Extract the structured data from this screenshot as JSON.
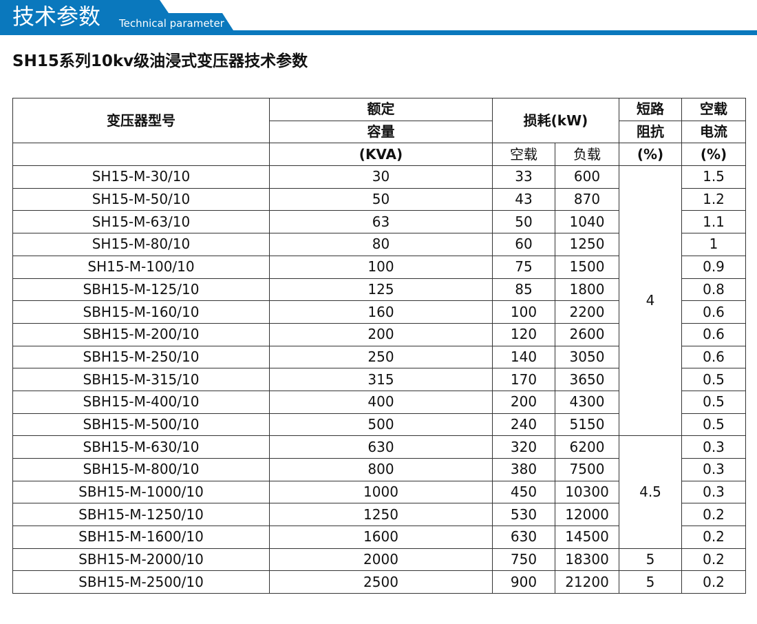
{
  "banner": {
    "title": "技术参数",
    "subtitle": "Technical parameter",
    "color": "#0a78bd"
  },
  "doc_title": "SH15系列10kv级油浸式变压器技术参数",
  "table": {
    "headers": {
      "model": "变压器型号",
      "capacity": [
        "额定",
        "容量",
        "(KVA)"
      ],
      "loss": "损耗(kW)",
      "no_load": "空载",
      "load": "负载",
      "impedance": [
        "短路",
        "阻抗",
        "(%)"
      ],
      "current": [
        "空载",
        "电流",
        "(%)"
      ]
    },
    "rows": [
      {
        "model": "SH15-M-30/10",
        "kva": "30",
        "nl": "33",
        "ld": "600",
        "cur": "1.5"
      },
      {
        "model": "SH15-M-50/10",
        "kva": "50",
        "nl": "43",
        "ld": "870",
        "cur": "1.2"
      },
      {
        "model": "SH15-M-63/10",
        "kva": "63",
        "nl": "50",
        "ld": "1040",
        "cur": "1.1"
      },
      {
        "model": "SH15-M-80/10",
        "kva": "80",
        "nl": "60",
        "ld": "1250",
        "cur": "1"
      },
      {
        "model": "SH15-M-100/10",
        "kva": "100",
        "nl": "75",
        "ld": "1500",
        "cur": "0.9"
      },
      {
        "model": "SBH15-M-125/10",
        "kva": "125",
        "nl": "85",
        "ld": "1800",
        "cur": "0.8"
      },
      {
        "model": "SBH15-M-160/10",
        "kva": "160",
        "nl": "100",
        "ld": "2200",
        "cur": "0.6"
      },
      {
        "model": "SBH15-M-200/10",
        "kva": "200",
        "nl": "120",
        "ld": "2600",
        "cur": "0.6"
      },
      {
        "model": "SBH15-M-250/10",
        "kva": "250",
        "nl": "140",
        "ld": "3050",
        "cur": "0.6"
      },
      {
        "model": "SBH15-M-315/10",
        "kva": "315",
        "nl": "170",
        "ld": "3650",
        "cur": "0.5"
      },
      {
        "model": "SBH15-M-400/10",
        "kva": "400",
        "nl": "200",
        "ld": "4300",
        "cur": "0.5"
      },
      {
        "model": "SBH15-M-500/10",
        "kva": "500",
        "nl": "240",
        "ld": "5150",
        "cur": "0.5"
      },
      {
        "model": "SBH15-M-630/10",
        "kva": "630",
        "nl": "320",
        "ld": "6200",
        "cur": "0.3"
      },
      {
        "model": "SBH15-M-800/10",
        "kva": "800",
        "nl": "380",
        "ld": "7500",
        "cur": "0.3"
      },
      {
        "model": "SBH15-M-1000/10",
        "kva": "1000",
        "nl": "450",
        "ld": "10300",
        "cur": "0.3"
      },
      {
        "model": "SBH15-M-1250/10",
        "kva": "1250",
        "nl": "530",
        "ld": "12000",
        "cur": "0.2"
      },
      {
        "model": "SBH15-M-1600/10",
        "kva": "1600",
        "nl": "630",
        "ld": "14500",
        "cur": "0.2"
      },
      {
        "model": "SBH15-M-2000/10",
        "kva": "2000",
        "nl": "750",
        "ld": "18300",
        "cur": "0.2"
      },
      {
        "model": "SBH15-M-2500/10",
        "kva": "2500",
        "nl": "900",
        "ld": "21200",
        "cur": "0.2"
      }
    ],
    "impedance_groups": [
      {
        "value": "4",
        "rows": 12
      },
      {
        "value": "4.5",
        "rows": 5
      },
      {
        "value": "5",
        "rows": 1
      },
      {
        "value": "5",
        "rows": 1
      }
    ]
  }
}
